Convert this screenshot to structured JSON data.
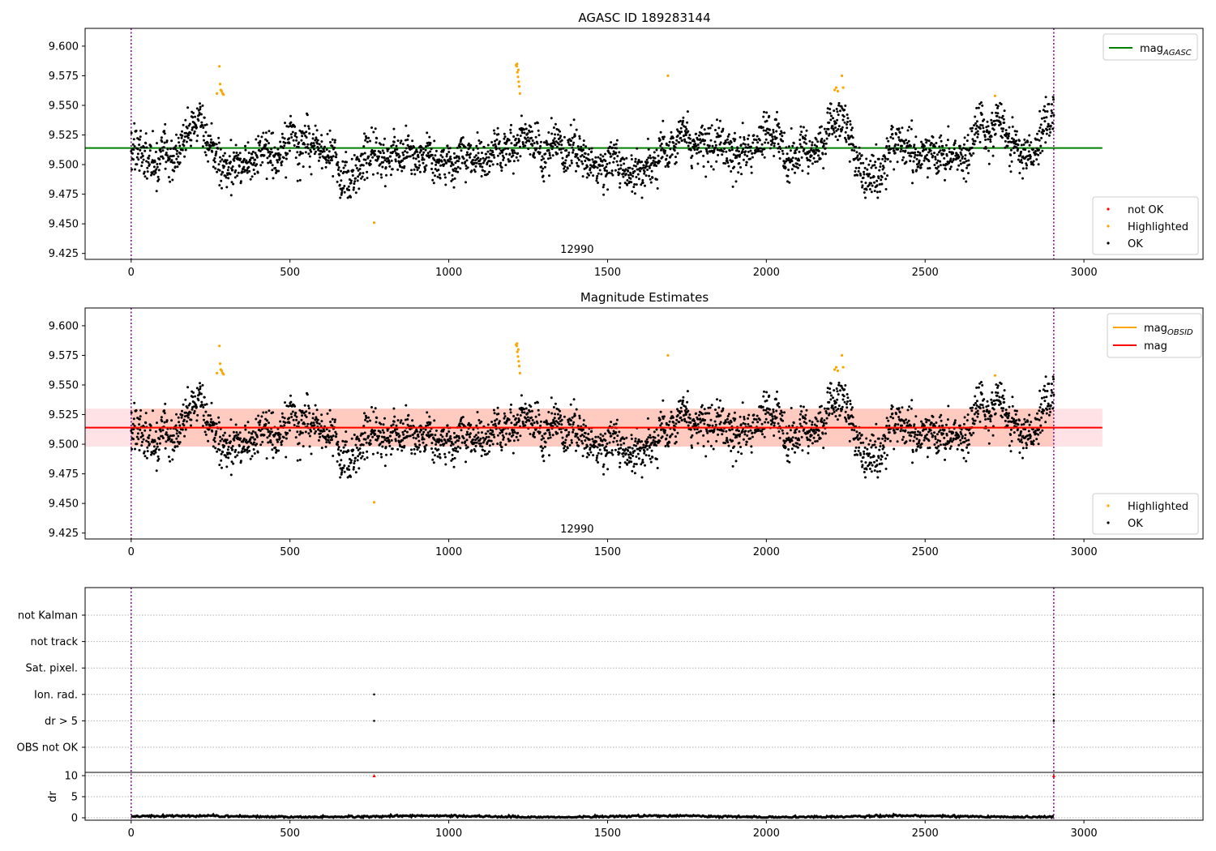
{
  "chart_data": [
    {
      "type": "scatter",
      "title": "AGASC ID 189283144",
      "xlim": [
        -145,
        3375
      ],
      "ylim": [
        9.42,
        9.615
      ],
      "x_ticks": [
        0,
        500,
        1000,
        1500,
        2000,
        2500,
        3000
      ],
      "y_ticks": [
        "9.425",
        "9.450",
        "9.475",
        "9.500",
        "9.525",
        "9.550",
        "9.575",
        "9.600"
      ],
      "obsid_label": "12990",
      "obsid_label_x": 1450,
      "vlines_x": [
        0,
        2905
      ],
      "hline": {
        "name": "mag_AGASC",
        "label_main": "mag",
        "label_sub": "AGASC",
        "value": 9.514,
        "x_range": [
          -145,
          3058
        ],
        "color": "#008000"
      },
      "legend_lines": [
        {
          "label_main": "mag",
          "label_sub": "AGASC",
          "color": "#008000"
        }
      ],
      "legend_points": [
        {
          "label": "not OK",
          "color": "#ff0000"
        },
        {
          "label": "Highlighted",
          "color": "#ffa500"
        },
        {
          "label": "OK",
          "color": "#000000"
        }
      ],
      "series": [
        {
          "name": "OK",
          "color": "#000000",
          "n_points": 2905,
          "x_range": [
            0,
            2905
          ],
          "baseline": 9.514,
          "approx_profile_x": [
            0,
            150,
            260,
            300,
            400,
            550,
            650,
            760,
            850,
            950,
            1100,
            1220,
            1300,
            1500,
            1650,
            1720,
            1850,
            1950,
            2100,
            2230,
            2300,
            2450,
            2600,
            2720,
            2800,
            2905
          ],
          "approx_profile_y": [
            9.512,
            9.515,
            9.535,
            9.508,
            9.508,
            9.522,
            9.505,
            9.515,
            9.503,
            9.52,
            9.506,
            9.512,
            9.505,
            9.503,
            9.505,
            9.53,
            9.51,
            9.505,
            9.51,
            9.538,
            9.503,
            9.512,
            9.503,
            9.542,
            9.508,
            9.525
          ],
          "scatter_sd": 0.011
        },
        {
          "name": "Highlighted",
          "color": "#ffa500",
          "x": [
            278,
            280,
            282,
            285,
            288,
            291,
            270,
            1212,
            1214,
            1216,
            1218,
            1220,
            1222,
            1224,
            1215,
            1219,
            1690,
            2215,
            2220,
            2225,
            2238,
            2242,
            765,
            2720
          ],
          "y": [
            9.583,
            9.568,
            9.563,
            9.562,
            9.56,
            9.559,
            9.56,
            9.584,
            9.583,
            9.578,
            9.574,
            9.57,
            9.566,
            9.56,
            9.585,
            9.58,
            9.575,
            9.563,
            9.565,
            9.562,
            9.575,
            9.565,
            9.451,
            9.558
          ]
        }
      ]
    },
    {
      "type": "scatter",
      "title": "Magnitude Estimates",
      "xlim": [
        -145,
        3375
      ],
      "ylim": [
        9.42,
        9.615
      ],
      "x_ticks": [
        0,
        500,
        1000,
        1500,
        2000,
        2500,
        3000
      ],
      "y_ticks": [
        "9.425",
        "9.450",
        "9.475",
        "9.500",
        "9.525",
        "9.550",
        "9.575",
        "9.600"
      ],
      "obsid_label": "12990",
      "obsid_label_x": 1450,
      "vlines_x": [
        0,
        2905
      ],
      "bands": [
        {
          "name": "mag range",
          "x_range": [
            -145,
            3058
          ],
          "y_range": [
            9.498,
            9.53
          ],
          "color": "#ffb6c1",
          "opacity": 0.4
        },
        {
          "name": "mag_OBSID range",
          "x_range": [
            0,
            2905
          ],
          "y_range": [
            9.498,
            9.53
          ],
          "color": "#ffa07a",
          "opacity": 0.35
        }
      ],
      "hlines": [
        {
          "name": "mag_OBSID",
          "value": 9.514,
          "x_range": [
            0,
            2905
          ],
          "color": "#ffa500"
        },
        {
          "name": "mag",
          "value": 9.514,
          "x_range": [
            -145,
            3058
          ],
          "color": "#ff0000"
        }
      ],
      "legend_lines": [
        {
          "label_main": "mag",
          "label_sub": "OBSID",
          "color": "#ffa500"
        },
        {
          "label_main": "mag",
          "label_sub": "",
          "color": "#ff0000"
        }
      ],
      "legend_points": [
        {
          "label": "Highlighted",
          "color": "#ffa500"
        },
        {
          "label": "OK",
          "color": "#000000"
        }
      ],
      "series_ref": "same OK and Highlighted points as first panel"
    },
    {
      "type": "scatter",
      "title": "",
      "xlim": [
        -145,
        3375
      ],
      "x_ticks": [
        0,
        500,
        1000,
        1500,
        2000,
        2500,
        3000
      ],
      "vlines_x": [
        0,
        2905
      ],
      "flag_rows": [
        "not Kalman",
        "not track",
        "Sat. pixel.",
        "Ion. rad.",
        "dr > 5",
        "OBS not OK"
      ],
      "flag_points": [
        {
          "row": "Ion. rad.",
          "x": [
            765,
            2905
          ]
        },
        {
          "row": "dr > 5",
          "x": [
            765,
            2905
          ]
        }
      ],
      "dr_panel": {
        "ylabel": "dr",
        "ylim": [
          -1,
          12
        ],
        "y_ticks": [
          "0",
          "5",
          "10"
        ],
        "series": {
          "name": "dr",
          "color": "#000000",
          "x_range": [
            0,
            2905
          ],
          "typical_value": 0.3
        },
        "outliers": {
          "color": "#ff0000",
          "x": [
            765,
            2905
          ],
          "y": [
            10,
            10
          ]
        }
      }
    }
  ]
}
